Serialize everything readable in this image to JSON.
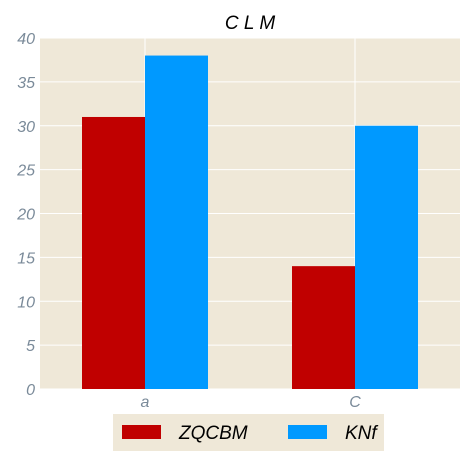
{
  "chart_data": {
    "type": "bar",
    "title": "C L M",
    "xlabel": "",
    "ylabel": "",
    "categories": [
      "a",
      "C"
    ],
    "series": [
      {
        "name": "ZQCBM",
        "values": [
          31,
          14
        ],
        "color": "#c00000"
      },
      {
        "name": "KNf",
        "values": [
          38,
          30
        ],
        "color": "#0099ff"
      }
    ],
    "ylim": [
      0,
      40
    ],
    "yticks": [
      "0",
      "5",
      "10",
      "15",
      "20",
      "25",
      "30",
      "35",
      "40"
    ],
    "grid": true,
    "legend_position": "bottom",
    "colors": {
      "plot_background": "#efe8d8",
      "grid": "#ffffff",
      "tick_text": "#7a8a99",
      "title_text": "#000000",
      "legend_background": "#efe8d8"
    }
  }
}
